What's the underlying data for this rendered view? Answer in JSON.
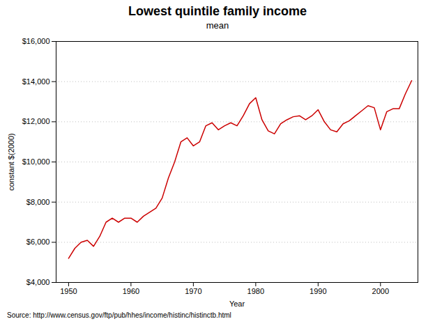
{
  "chart_data": {
    "type": "line",
    "title": "Lowest quintile family income",
    "subtitle": "mean",
    "xlabel": "Year",
    "ylabel": "constant $(2000)",
    "source": "Source: http://www.census.gov/ftp/pub/hhes/income/histinc/histinctb.html",
    "color": "#cc0000",
    "grid": true,
    "xlim": [
      1948,
      2006
    ],
    "ylim": [
      4000,
      16000
    ],
    "xticks": [
      1950,
      1960,
      1970,
      1980,
      1990,
      2000
    ],
    "yticks": [
      {
        "value": 4000,
        "label": "$4,000"
      },
      {
        "value": 6000,
        "label": "$6,000"
      },
      {
        "value": 8000,
        "label": "$8,000"
      },
      {
        "value": 10000,
        "label": "$10,000"
      },
      {
        "value": 12000,
        "label": "$12,000"
      },
      {
        "value": 14000,
        "label": "$14,000"
      },
      {
        "value": 16000,
        "label": "$16,000"
      }
    ],
    "x": [
      1950,
      1951,
      1952,
      1953,
      1954,
      1955,
      1956,
      1957,
      1958,
      1959,
      1960,
      1961,
      1962,
      1963,
      1964,
      1965,
      1966,
      1967,
      1968,
      1969,
      1970,
      1971,
      1972,
      1973,
      1974,
      1975,
      1976,
      1977,
      1978,
      1979,
      1980,
      1981,
      1982,
      1983,
      1984,
      1985,
      1986,
      1987,
      1988,
      1989,
      1990,
      1991,
      1992,
      1993,
      1994,
      1995,
      1996,
      1997,
      1998,
      1999,
      2000,
      2001,
      2002,
      2003,
      2004,
      2005
    ],
    "values": [
      5200,
      5700,
      6000,
      6100,
      5800,
      6300,
      7000,
      7200,
      7000,
      7200,
      7200,
      7000,
      7300,
      7500,
      7700,
      8200,
      9200,
      10000,
      11000,
      11200,
      10800,
      11000,
      11800,
      11950,
      11600,
      11800,
      11950,
      11800,
      12300,
      12900,
      13200,
      12100,
      11550,
      11400,
      11900,
      12100,
      12250,
      12300,
      12100,
      12300,
      12600,
      12000,
      11600,
      11500,
      11900,
      12050,
      12300,
      12550,
      12800,
      12700,
      11600,
      12500,
      12650,
      12650,
      13400,
      14050
    ]
  }
}
